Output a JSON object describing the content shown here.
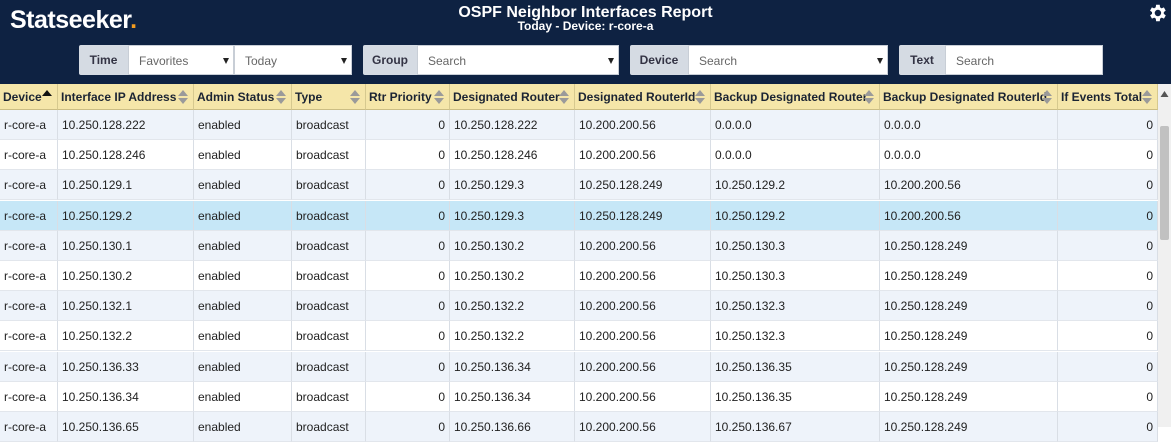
{
  "header": {
    "logo": {
      "name": "Statseeker",
      "dot": "."
    },
    "title": "OSPF Neighbor Interfaces Report",
    "subtitle": "Today - Device: r-core-a"
  },
  "filters": [
    {
      "label": "Time",
      "fields": [
        {
          "text": "Favorites",
          "dropdown": true
        },
        {
          "text": "Today",
          "dropdown": true
        }
      ]
    },
    {
      "label": "Group",
      "fields": [
        {
          "text": "Search",
          "dropdown": true
        }
      ]
    },
    {
      "label": "Device",
      "fields": [
        {
          "text": "Search",
          "dropdown": true
        }
      ]
    },
    {
      "label": "Text",
      "fields": [
        {
          "text": "Search",
          "dropdown": false
        }
      ]
    }
  ],
  "table": {
    "columns": [
      {
        "name": "Device",
        "align": "left",
        "sort": "asc"
      },
      {
        "name": "Interface IP Address",
        "align": "left",
        "sort": "none"
      },
      {
        "name": "Admin Status",
        "align": "left",
        "sort": "none"
      },
      {
        "name": "Type",
        "align": "left",
        "sort": "none"
      },
      {
        "name": "Rtr Priority",
        "align": "right",
        "sort": "none"
      },
      {
        "name": "Designated Router",
        "align": "left",
        "sort": "none"
      },
      {
        "name": "Designated RouterId",
        "align": "left",
        "sort": "none"
      },
      {
        "name": "Backup Designated Router",
        "align": "left",
        "sort": "none"
      },
      {
        "name": "Backup Designated RouterId",
        "align": "left",
        "sort": "none"
      },
      {
        "name": "If Events Total",
        "align": "right",
        "sort": "none"
      }
    ],
    "selected_row": 3,
    "rows": [
      [
        "r-core-a",
        "10.250.128.222",
        "enabled",
        "broadcast",
        0,
        "10.250.128.222",
        "10.200.200.56",
        "0.0.0.0",
        "0.0.0.0",
        0
      ],
      [
        "r-core-a",
        "10.250.128.246",
        "enabled",
        "broadcast",
        0,
        "10.250.128.246",
        "10.200.200.56",
        "0.0.0.0",
        "0.0.0.0",
        0
      ],
      [
        "r-core-a",
        "10.250.129.1",
        "enabled",
        "broadcast",
        0,
        "10.250.129.3",
        "10.250.128.249",
        "10.250.129.2",
        "10.200.200.56",
        0
      ],
      [
        "r-core-a",
        "10.250.129.2",
        "enabled",
        "broadcast",
        0,
        "10.250.129.3",
        "10.250.128.249",
        "10.250.129.2",
        "10.200.200.56",
        0
      ],
      [
        "r-core-a",
        "10.250.130.1",
        "enabled",
        "broadcast",
        0,
        "10.250.130.2",
        "10.200.200.56",
        "10.250.130.3",
        "10.250.128.249",
        0
      ],
      [
        "r-core-a",
        "10.250.130.2",
        "enabled",
        "broadcast",
        0,
        "10.250.130.2",
        "10.200.200.56",
        "10.250.130.3",
        "10.250.128.249",
        0
      ],
      [
        "r-core-a",
        "10.250.132.1",
        "enabled",
        "broadcast",
        0,
        "10.250.132.2",
        "10.200.200.56",
        "10.250.132.3",
        "10.250.128.249",
        0
      ],
      [
        "r-core-a",
        "10.250.132.2",
        "enabled",
        "broadcast",
        0,
        "10.250.132.2",
        "10.200.200.56",
        "10.250.132.3",
        "10.250.128.249",
        0
      ],
      [
        "r-core-a",
        "10.250.136.33",
        "enabled",
        "broadcast",
        0,
        "10.250.136.34",
        "10.200.200.56",
        "10.250.136.35",
        "10.250.128.249",
        0
      ],
      [
        "r-core-a",
        "10.250.136.34",
        "enabled",
        "broadcast",
        0,
        "10.250.136.34",
        "10.200.200.56",
        "10.250.136.35",
        "10.250.128.249",
        0
      ],
      [
        "r-core-a",
        "10.250.136.65",
        "enabled",
        "broadcast",
        0,
        "10.250.136.66",
        "10.200.200.56",
        "10.250.136.67",
        "10.250.128.249",
        0
      ]
    ]
  }
}
